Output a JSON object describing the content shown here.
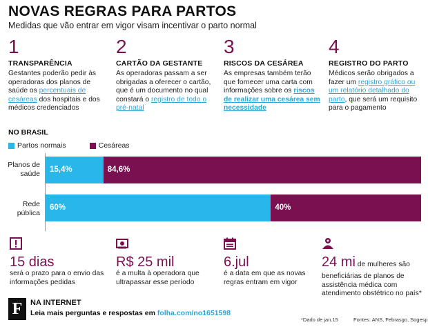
{
  "header": {
    "title": "NOVAS REGRAS PARA PARTOS",
    "subtitle": "Medidas que vão entrar em vigor visam incentivar o parto normal"
  },
  "columns": [
    {
      "num": "1",
      "head": "TRANSPARÊNCIA",
      "p1": "Gestantes poderão pedir às operadoras dos planos de saúde os ",
      "link": "percentuais de cesáreas",
      "p2": " dos hospitais e dos médicos credenciados"
    },
    {
      "num": "2",
      "head": "CARTÃO DA GESTANTE",
      "p1": "As operadoras passam a ser obrigadas a oferecer o cartão, que é um documento no qual constará o ",
      "link": "registro de todo o pré-natal",
      "p2": ""
    },
    {
      "num": "3",
      "head": "RISCOS DA CESÁREA",
      "p1": "As empresas também terão que fornecer uma carta com informações sobre os ",
      "link": "riscos de realizar uma cesárea sem necessidade",
      "p2": ""
    },
    {
      "num": "4",
      "head": "REGISTRO DO PARTO",
      "p1": "Médicos serão obrigados a fazer um ",
      "link": "registro gráfico ou um relatório detalhado do parto",
      "p2": ", que será um requisito para o pagamento"
    }
  ],
  "colors": {
    "normal": "#29b6e8",
    "cesarea": "#7a1050",
    "accent": "#7a1050",
    "link": "#2aa6d8"
  },
  "chart_data": {
    "type": "bar",
    "stacked": true,
    "orientation": "horizontal",
    "title": "NO BRASIL",
    "categories": [
      "Planos de saúde",
      "Rede pública"
    ],
    "series": [
      {
        "name": "Partos normais",
        "values": [
          15.4,
          60
        ],
        "labels": [
          "15,4%",
          "60%"
        ]
      },
      {
        "name": "Cesáreas",
        "values": [
          84.6,
          40
        ],
        "labels": [
          "84,6%",
          "40%"
        ]
      }
    ],
    "xlim": [
      0,
      100
    ],
    "legend": "top-left"
  },
  "facts": [
    {
      "icon": "alert-icon",
      "big": "15 dias",
      "text": "será o prazo para o envio das informações pedidas"
    },
    {
      "icon": "money-icon",
      "big": "R$ 25 mil",
      "text": "é a multa à operadora que ultrapassar esse período"
    },
    {
      "icon": "calendar-icon",
      "big": "6.jul",
      "text": "é a data em que as novas regras entram em vigor"
    },
    {
      "icon": "people-icon",
      "big": "24 mi",
      "small": " de mulheres são",
      "text": "beneficiárias de planos de assistência médica com atendimento obstétrico no país*"
    }
  ],
  "footer": {
    "logo": "F",
    "title": "NA INTERNET",
    "text": "Leia mais perguntas e respostas em ",
    "link": "folha.com/no1651598",
    "footnote": "*Dado de jan.15",
    "sources": "Fontes: ANS, Febrasgo, Sogesp"
  }
}
